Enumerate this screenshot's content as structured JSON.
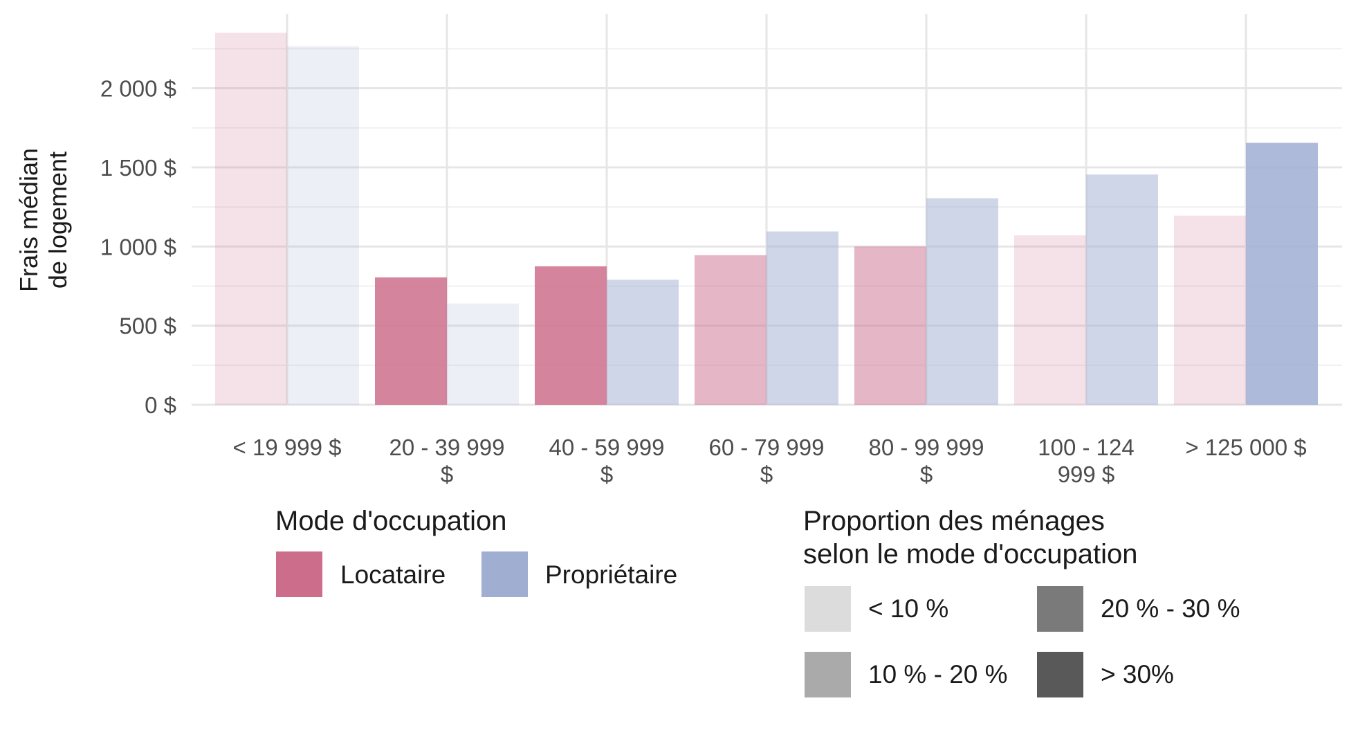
{
  "chart_data": {
    "type": "bar",
    "title": "",
    "xlabel": "",
    "ylabel_lines": [
      "Frais médian",
      "de logement"
    ],
    "ylim": [
      0,
      2400
    ],
    "y_ticks": [
      0,
      500,
      1000,
      1500,
      2000
    ],
    "y_tick_labels": [
      "0 $",
      "500 $",
      "1 000 $",
      "1 500 $",
      "2 000 $"
    ],
    "grid": true,
    "categories": [
      [
        "< 19 999 $"
      ],
      [
        "20 - 39 999",
        "$"
      ],
      [
        "40 - 59 999",
        "$"
      ],
      [
        "60 - 79 999",
        "$"
      ],
      [
        "80 - 99 999",
        "$"
      ],
      [
        "100 - 124",
        "999 $"
      ],
      [
        "> 125 000 $"
      ]
    ],
    "series": [
      {
        "name": "Locataire",
        "color": "#cc6e8b",
        "values": [
          2350,
          805,
          875,
          945,
          1000,
          1070,
          1195
        ],
        "proportion_class": [
          0,
          3,
          3,
          1,
          1,
          0,
          0
        ]
      },
      {
        "name": "Propriétaire",
        "color": "#a0aed2",
        "values": [
          2265,
          640,
          790,
          1095,
          1305,
          1455,
          1655
        ],
        "proportion_class": [
          0,
          0,
          1,
          1,
          1,
          1,
          3
        ]
      }
    ],
    "legend_mode": {
      "title": "Mode d'occupation",
      "items": [
        {
          "label": "Locataire",
          "color": "#cc6e8b"
        },
        {
          "label": "Propriétaire",
          "color": "#a0aed2"
        }
      ]
    },
    "legend_proportion": {
      "title_lines": [
        "Proportion des ménages",
        "selon le mode d'occupation"
      ],
      "items": [
        {
          "label": "< 10 %",
          "color": "#dcdcdc"
        },
        {
          "label": "10 % - 20 %",
          "color": "#aaaaaa"
        },
        {
          "label": "20 % - 30 %",
          "color": "#7a7a7a"
        },
        {
          "label": "> 30%",
          "color": "#595959"
        }
      ],
      "bar_opacity": [
        0.2,
        0.5,
        0.75,
        0.85
      ]
    }
  }
}
